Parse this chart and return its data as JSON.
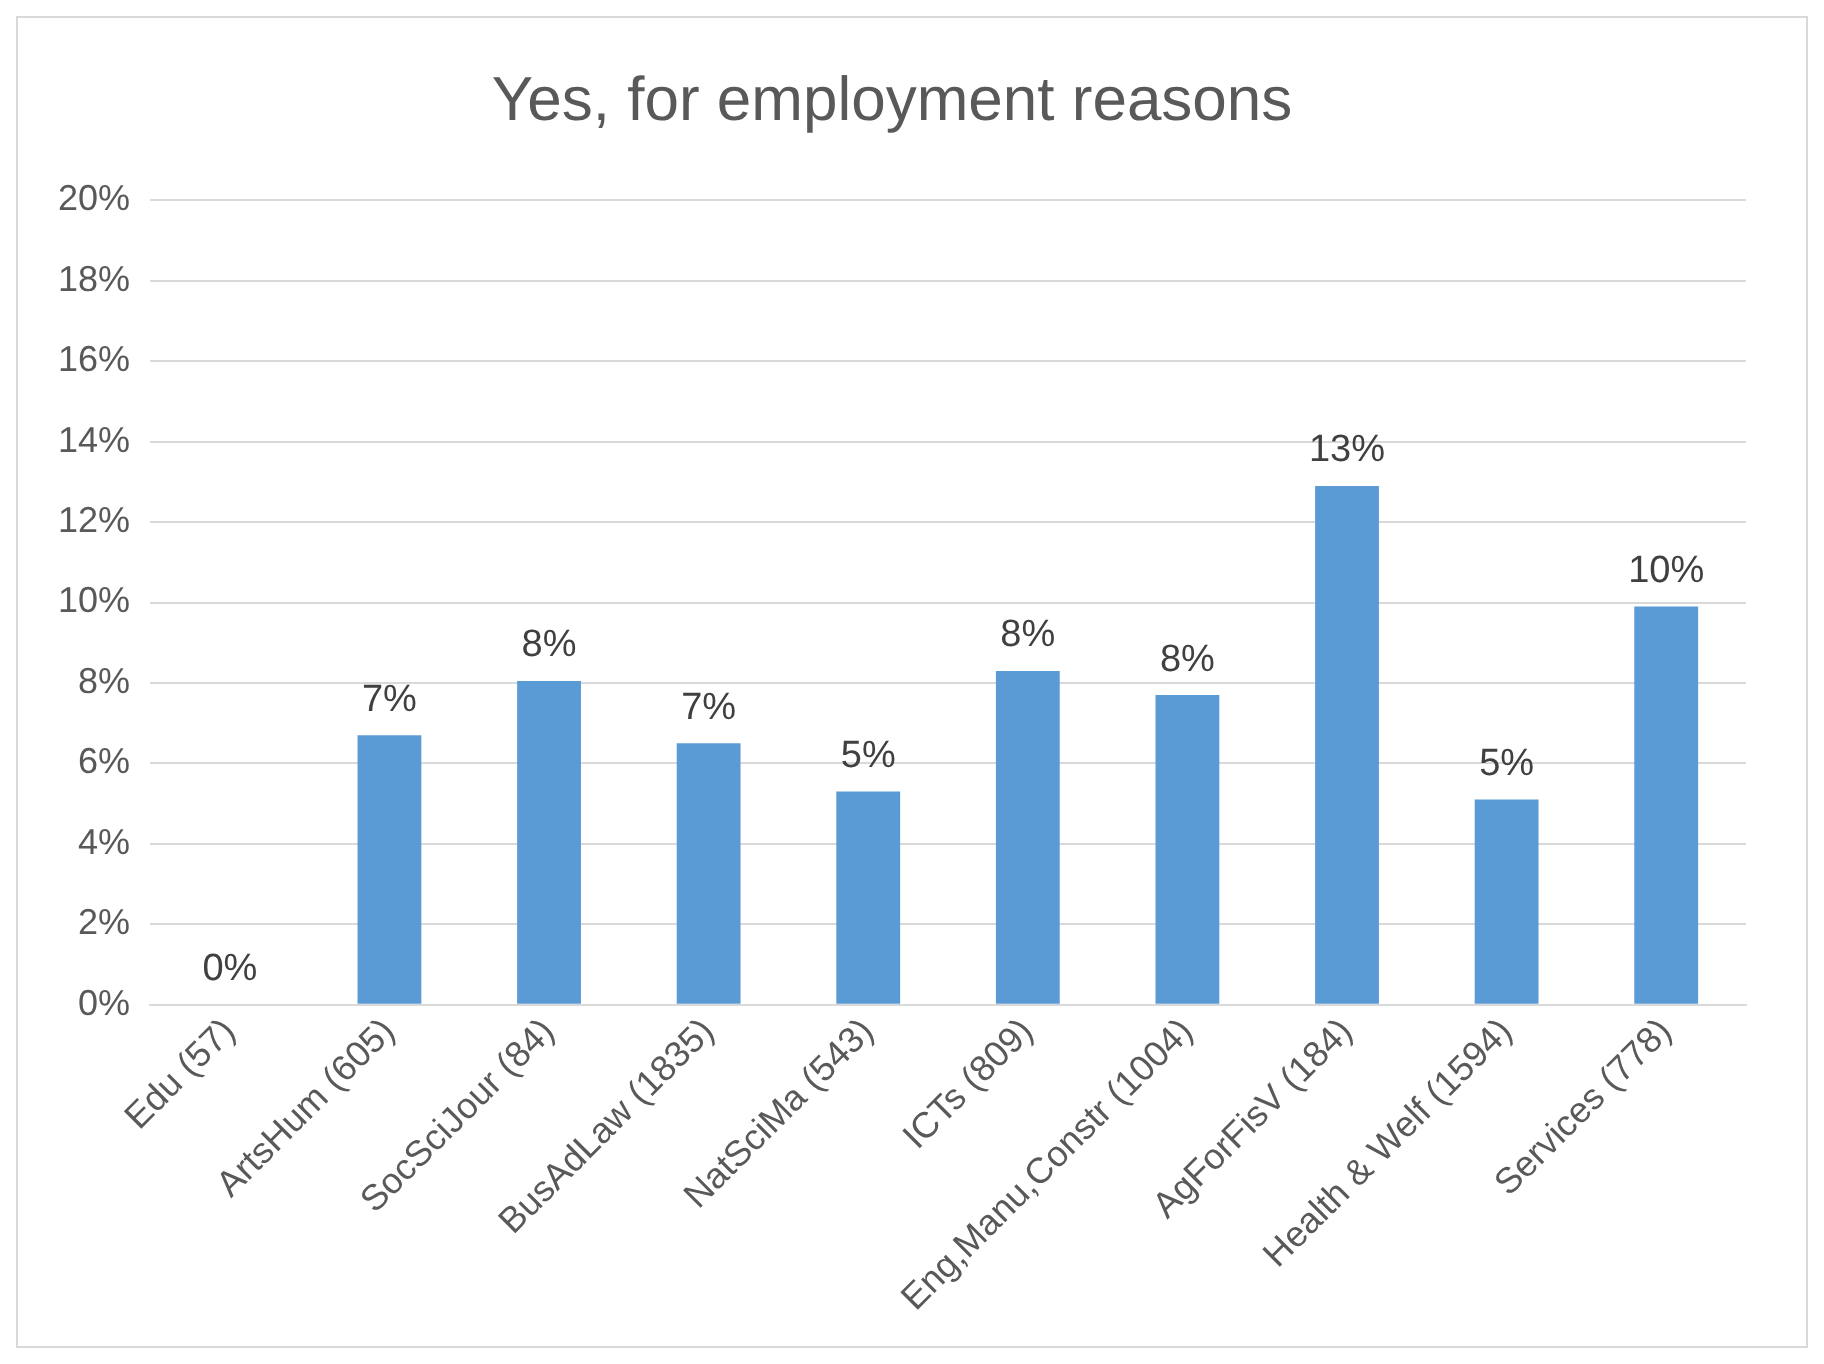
{
  "chart_data": {
    "type": "bar",
    "title": "Yes, for employment reasons",
    "categories": [
      "Edu (57)",
      "ArtsHum (605)",
      "SocSciJour (84)",
      "BusAdLaw (1835)",
      "NatSciMa (543)",
      "ICTs (809)",
      "Eng,Manu,Constr (1004)",
      "AgForFisV (184)",
      "Health & Welf (1594)",
      "Services (778)"
    ],
    "values": [
      0,
      6.7,
      8.05,
      6.5,
      5.3,
      8.3,
      7.7,
      12.9,
      5.1,
      9.9
    ],
    "value_labels": [
      "0%",
      "7%",
      "8%",
      "7%",
      "5%",
      "8%",
      "8%",
      "13%",
      "5%",
      "10%"
    ],
    "color": "#5b9bd5",
    "ylim": [
      0,
      20
    ],
    "yticks": [
      {
        "value": 0,
        "label": "0%"
      },
      {
        "value": 2,
        "label": "2%"
      },
      {
        "value": 4,
        "label": "4%"
      },
      {
        "value": 6,
        "label": "6%"
      },
      {
        "value": 8,
        "label": "8%"
      },
      {
        "value": 10,
        "label": "10%"
      },
      {
        "value": 12,
        "label": "12%"
      },
      {
        "value": 14,
        "label": "14%"
      },
      {
        "value": 16,
        "label": "16%"
      },
      {
        "value": 18,
        "label": "18%"
      },
      {
        "value": 20,
        "label": "20%"
      }
    ],
    "grid": "y",
    "legend": false
  }
}
